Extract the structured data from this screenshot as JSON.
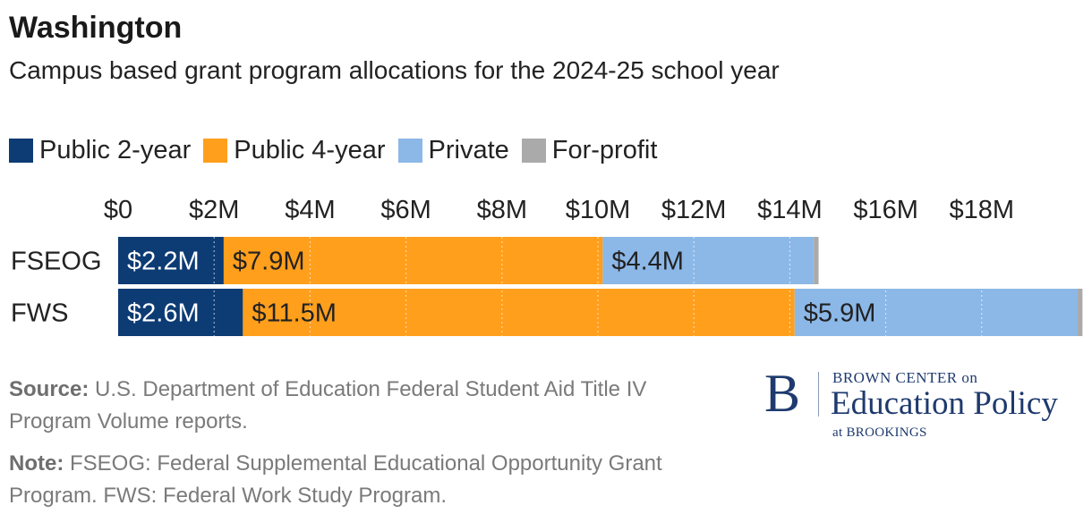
{
  "header": {
    "title": "Washington",
    "subtitle": "Campus based grant program allocations for the 2024-25 school year"
  },
  "colors": {
    "public_2_year": "#0d3b74",
    "public_4_year": "#ff9f1c",
    "private": "#8cb8e8",
    "for_profit": "#aaaaaa"
  },
  "legend": [
    {
      "label": "Public 2-year",
      "color": "#0d3b74"
    },
    {
      "label": "Public 4-year",
      "color": "#ff9f1c"
    },
    {
      "label": "Private",
      "color": "#8cb8e8"
    },
    {
      "label": "For-profit",
      "color": "#aaaaaa"
    }
  ],
  "chart_data": {
    "type": "bar",
    "orientation": "horizontal",
    "stacked": true,
    "categories": [
      "FSEOG",
      "FWS"
    ],
    "series": [
      {
        "name": "Public 2-year",
        "values": [
          2.2,
          2.6
        ],
        "labels": [
          "$2.2M",
          "$2.6M"
        ],
        "color": "#0d3b74"
      },
      {
        "name": "Public 4-year",
        "values": [
          7.9,
          11.5
        ],
        "labels": [
          "$7.9M",
          "$11.5M"
        ],
        "color": "#ff9f1c"
      },
      {
        "name": "Private",
        "values": [
          4.4,
          5.9
        ],
        "labels": [
          "$4.4M",
          "$5.9M"
        ],
        "color": "#8cb8e8"
      },
      {
        "name": "For-profit",
        "values": [
          0.1,
          0.1
        ],
        "labels": [
          "",
          ""
        ],
        "color": "#aaaaaa"
      }
    ],
    "x_ticks": [
      0,
      2,
      4,
      6,
      8,
      10,
      12,
      14,
      16,
      18
    ],
    "x_tick_labels": [
      "$0",
      "$2M",
      "$4M",
      "$6M",
      "$8M",
      "$10M",
      "$12M",
      "$14M",
      "$16M",
      "$18M"
    ],
    "xlim": [
      0,
      20
    ],
    "grid": true,
    "legend_position": "top-left"
  },
  "footer": {
    "source_label": "Source:",
    "source_text": "U.S. Department of Education Federal Student Aid Title IV Program Volume reports.",
    "note_label": "Note:",
    "note_text": "FSEOG: Federal Supplemental Educational Opportunity Grant Program. FWS: Federal Work Study Program."
  },
  "logo": {
    "mark": "B",
    "line1": "BROWN CENTER on",
    "line2": "Education Policy",
    "line3": "at BROOKINGS"
  }
}
